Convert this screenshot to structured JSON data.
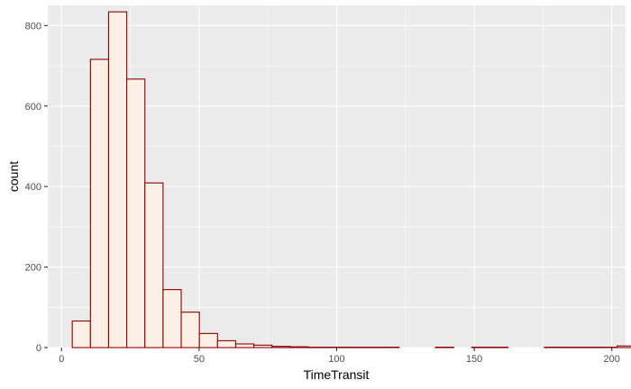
{
  "chart_data": {
    "type": "bar",
    "subtype": "histogram",
    "title": "",
    "xlabel": "TimeTransit",
    "ylabel": "count",
    "xlim": [
      -5,
      205
    ],
    "ylim": [
      0,
      850
    ],
    "x_ticks": [
      0,
      50,
      100,
      150,
      200
    ],
    "y_ticks": [
      0,
      200,
      400,
      600,
      800
    ],
    "bin_width": 6.6,
    "bin_edges_start": 3.9,
    "counts": [
      66,
      716,
      834,
      667,
      409,
      144,
      88,
      35,
      17,
      9,
      6,
      3,
      2,
      1,
      1,
      1,
      1,
      1,
      0,
      0,
      1,
      0,
      1,
      1,
      0,
      0,
      1,
      1,
      1,
      1,
      4,
      7,
      4,
      2
    ],
    "grid": true,
    "colors": {
      "panel_bg": "#EBEBEB",
      "grid_major": "#FFFFFF",
      "bar_fill": "#FAF0E6",
      "bar_stroke": "#8B0000"
    }
  }
}
